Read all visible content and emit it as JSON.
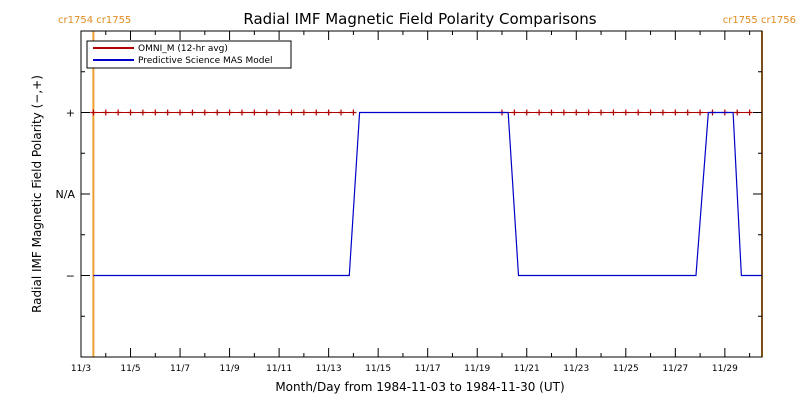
{
  "chart_data": {
    "type": "line",
    "title": "Radial IMF Magnetic Field Polarity Comparisons",
    "xlabel": "Month/Day from 1984-11-03 to 1984-11-30 (UT)",
    "ylabel": "Radial IMF Magnetic Field Polarity (−,+)",
    "xlim": [
      "1984-11-03T00:00",
      "1984-11-30T12:00"
    ],
    "ylim": [
      -2,
      2
    ],
    "grid": false,
    "legend_position": "top-left",
    "x_ticks": [
      {
        "date": "1984-11-03",
        "label": "11/3"
      },
      {
        "date": "1984-11-05",
        "label": "11/5"
      },
      {
        "date": "1984-11-07",
        "label": "11/7"
      },
      {
        "date": "1984-11-09",
        "label": "11/9"
      },
      {
        "date": "1984-11-11",
        "label": "11/11"
      },
      {
        "date": "1984-11-13",
        "label": "11/13"
      },
      {
        "date": "1984-11-15",
        "label": "11/15"
      },
      {
        "date": "1984-11-17",
        "label": "11/17"
      },
      {
        "date": "1984-11-19",
        "label": "11/19"
      },
      {
        "date": "1984-11-21",
        "label": "11/21"
      },
      {
        "date": "1984-11-23",
        "label": "11/23"
      },
      {
        "date": "1984-11-25",
        "label": "11/25"
      },
      {
        "date": "1984-11-27",
        "label": "11/27"
      },
      {
        "date": "1984-11-29",
        "label": "11/29"
      }
    ],
    "y_ticks": [
      {
        "value": 1,
        "label": "+"
      },
      {
        "value": 0,
        "label": "N/A"
      },
      {
        "value": -1,
        "label": "−"
      }
    ],
    "carrington_markers": [
      {
        "date": "1984-11-03T12:00",
        "label": "cr1754 cr1755",
        "side": "left"
      },
      {
        "date": "1984-11-30T12:00",
        "label": "cr1755 cr1756",
        "side": "right"
      }
    ],
    "series": [
      {
        "name": "OMNI_M (12-hr avg)",
        "color": "#b00000",
        "style": "line+plus",
        "points": [
          {
            "x": "1984-11-03T12:00",
            "y": 1
          },
          {
            "x": "1984-11-04T00:00",
            "y": 1
          },
          {
            "x": "1984-11-04T12:00",
            "y": 1
          },
          {
            "x": "1984-11-05T00:00",
            "y": 1
          },
          {
            "x": "1984-11-05T12:00",
            "y": 1
          },
          {
            "x": "1984-11-06T00:00",
            "y": 1
          },
          {
            "x": "1984-11-06T12:00",
            "y": 1
          },
          {
            "x": "1984-11-07T00:00",
            "y": 1
          },
          {
            "x": "1984-11-07T12:00",
            "y": 1
          },
          {
            "x": "1984-11-08T00:00",
            "y": 1
          },
          {
            "x": "1984-11-08T12:00",
            "y": 1
          },
          {
            "x": "1984-11-09T00:00",
            "y": 1
          },
          {
            "x": "1984-11-09T12:00",
            "y": 1
          },
          {
            "x": "1984-11-10T00:00",
            "y": 1
          },
          {
            "x": "1984-11-10T12:00",
            "y": 1
          },
          {
            "x": "1984-11-11T00:00",
            "y": 1
          },
          {
            "x": "1984-11-11T12:00",
            "y": 1
          },
          {
            "x": "1984-11-12T00:00",
            "y": 1
          },
          {
            "x": "1984-11-12T12:00",
            "y": 1
          },
          {
            "x": "1984-11-13T00:00",
            "y": 1
          },
          {
            "x": "1984-11-13T12:00",
            "y": 1
          },
          {
            "x": "1984-11-14T00:00",
            "y": 1
          },
          {
            "x": "1984-11-20T00:00",
            "y": 1
          },
          {
            "x": "1984-11-20T12:00",
            "y": 1
          },
          {
            "x": "1984-11-21T00:00",
            "y": 1
          },
          {
            "x": "1984-11-21T12:00",
            "y": 1
          },
          {
            "x": "1984-11-22T00:00",
            "y": 1
          },
          {
            "x": "1984-11-22T12:00",
            "y": 1
          },
          {
            "x": "1984-11-23T00:00",
            "y": 1
          },
          {
            "x": "1984-11-23T12:00",
            "y": 1
          },
          {
            "x": "1984-11-24T00:00",
            "y": 1
          },
          {
            "x": "1984-11-24T12:00",
            "y": 1
          },
          {
            "x": "1984-11-25T00:00",
            "y": 1
          },
          {
            "x": "1984-11-25T12:00",
            "y": 1
          },
          {
            "x": "1984-11-26T00:00",
            "y": 1
          },
          {
            "x": "1984-11-26T12:00",
            "y": 1
          },
          {
            "x": "1984-11-27T00:00",
            "y": 1
          },
          {
            "x": "1984-11-27T12:00",
            "y": 1
          },
          {
            "x": "1984-11-28T00:00",
            "y": 1
          },
          {
            "x": "1984-11-28T12:00",
            "y": 1
          },
          {
            "x": "1984-11-29T00:00",
            "y": 1
          },
          {
            "x": "1984-11-29T12:00",
            "y": 1
          },
          {
            "x": "1984-11-30T00:00",
            "y": 1
          }
        ]
      },
      {
        "name": "Predictive Science MAS Model",
        "color": "#0000c8",
        "style": "line",
        "points": [
          {
            "x": "1984-11-03T12:00",
            "y": -1
          },
          {
            "x": "1984-11-13T20:00",
            "y": -1
          },
          {
            "x": "1984-11-14T06:00",
            "y": 1
          },
          {
            "x": "1984-11-20T06:00",
            "y": 1
          },
          {
            "x": "1984-11-20T16:00",
            "y": -1
          },
          {
            "x": "1984-11-27T20:00",
            "y": -1
          },
          {
            "x": "1984-11-28T08:00",
            "y": 1
          },
          {
            "x": "1984-11-29T08:00",
            "y": 1
          },
          {
            "x": "1984-11-29T16:00",
            "y": -1
          },
          {
            "x": "1984-11-30T12:00",
            "y": -1
          }
        ]
      }
    ],
    "colors": {
      "axes": "#000000",
      "marker": "#f0a030",
      "marker_label": "#e08a1e"
    }
  }
}
